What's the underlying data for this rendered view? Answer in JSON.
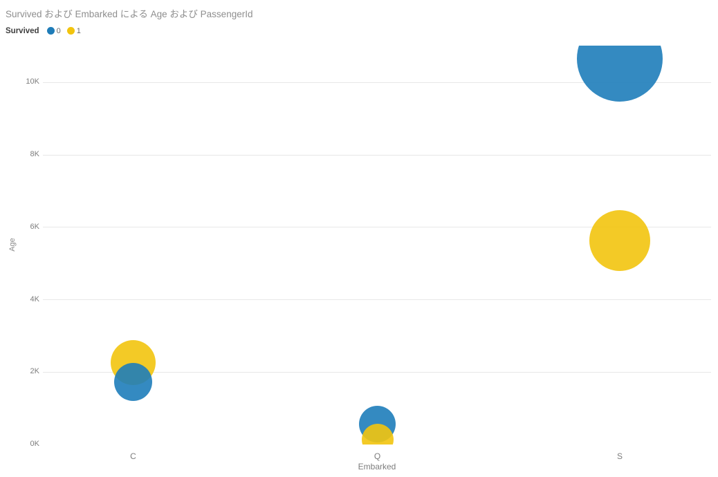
{
  "title": "Survived および Embarked による Age および PassengerId",
  "legend": {
    "title": "Survived",
    "items": [
      {
        "label": "0",
        "color": "#1F7CB8"
      },
      {
        "label": "1",
        "color": "#F2C40E"
      }
    ]
  },
  "chart_data": {
    "type": "scatter",
    "title": "Survived および Embarked による Age および PassengerId",
    "xlabel": "Embarked",
    "ylabel": "Age",
    "categories": [
      "C",
      "Q",
      "S"
    ],
    "y_ticks": [
      {
        "label": "0K",
        "value_k": 0
      },
      {
        "label": "2K",
        "value_k": 2
      },
      {
        "label": "4K",
        "value_k": 4
      },
      {
        "label": "6K",
        "value_k": 6
      },
      {
        "label": "8K",
        "value_k": 8
      },
      {
        "label": "10K",
        "value_k": 10
      }
    ],
    "ylim_k": [
      0,
      11
    ],
    "grid": true,
    "legend_field": "Survived",
    "legend_position": "top-left",
    "series": [
      {
        "name": "0",
        "color": "#1E7DBA",
        "points": [
          {
            "category": "C",
            "y_k": 1.72,
            "radius_px": 27.5,
            "on_top": true
          },
          {
            "category": "Q",
            "y_k": 0.57,
            "radius_px": 26.5,
            "on_top": false
          },
          {
            "category": "S",
            "y_k": 10.65,
            "radius_px": 62,
            "on_top": false
          }
        ]
      },
      {
        "name": "1",
        "color": "#F2C40E",
        "points": [
          {
            "category": "C",
            "y_k": 2.26,
            "radius_px": 32.5,
            "on_top": false
          },
          {
            "category": "Q",
            "y_k": 0.13,
            "radius_px": 23,
            "on_top": true
          },
          {
            "category": "S",
            "y_k": 5.63,
            "radius_px": 44,
            "on_top": false
          }
        ]
      }
    ]
  }
}
